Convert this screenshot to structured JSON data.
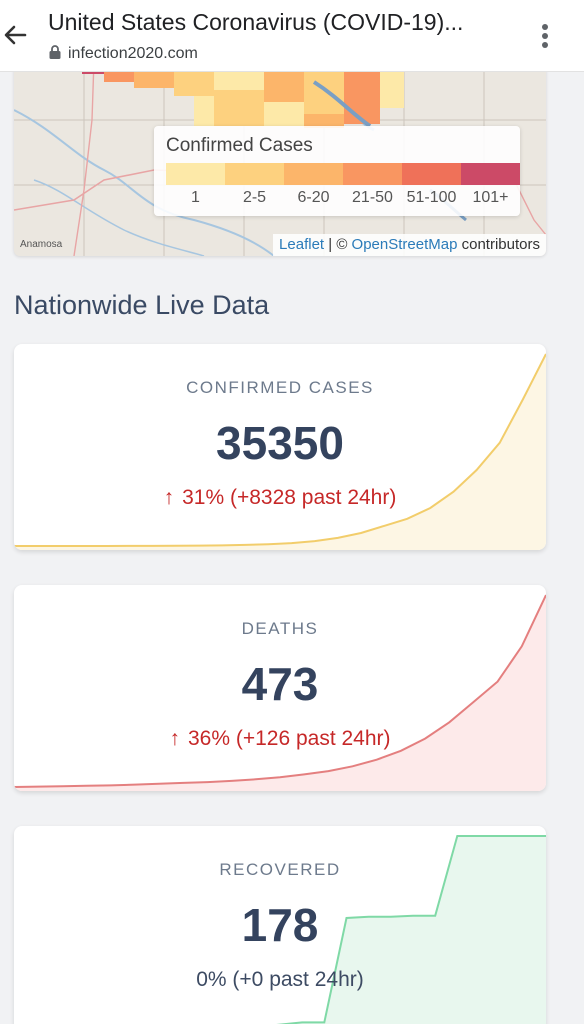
{
  "browser": {
    "title": "United States Coronavirus (COVID-19)...",
    "url": "infection2020.com"
  },
  "map": {
    "legend": {
      "title": "Confirmed Cases",
      "bins": [
        {
          "label": "1",
          "color": "#fde9a8"
        },
        {
          "label": "2-5",
          "color": "#fdd17f"
        },
        {
          "label": "6-20",
          "color": "#fcb56a"
        },
        {
          "label": "21-50",
          "color": "#f99661"
        },
        {
          "label": "51-100",
          "color": "#ef7159"
        },
        {
          "label": "101+",
          "color": "#cc4a67"
        }
      ]
    },
    "town": "Anamosa",
    "attribution": {
      "leaflet": "Leaflet",
      "separator": " | © ",
      "osm": "OpenStreetMap",
      "suffix": " contributors"
    }
  },
  "section": {
    "title": "Nationwide Live Data"
  },
  "stats": [
    {
      "label": "CONFIRMED CASES",
      "value": "35350",
      "arrow": "↑",
      "change": "31% (+8328 past 24hr)",
      "line_color": "#f2cd6b",
      "fill_color": "#fdf6e4",
      "trend": [
        1,
        2,
        3,
        5,
        8,
        14,
        24,
        40,
        70,
        120,
        200,
        330,
        540,
        900,
        1500,
        2400,
        3700,
        5000,
        7000,
        10000,
        14000,
        19000,
        27000,
        35350
      ]
    },
    {
      "label": "DEATHS",
      "value": "473",
      "arrow": "↑",
      "change": "36% (+126 past 24hr)",
      "line_color": "#e47f7f",
      "fill_color": "#fdeaea",
      "trend": [
        1,
        2,
        3,
        4,
        5,
        7,
        9,
        11,
        13,
        16,
        20,
        25,
        32,
        40,
        52,
        68,
        90,
        120,
        160,
        210,
        260,
        347,
        473
      ]
    },
    {
      "label": "RECOVERED",
      "value": "178",
      "arrow": "",
      "change": "0% (+0 past 24hr)",
      "line_color": "#7fd9a6",
      "fill_color": "#e8f7ee",
      "trend": [
        7,
        7,
        7,
        7,
        7,
        7,
        7,
        7,
        7,
        7,
        8,
        8,
        10,
        12,
        12,
        105,
        106,
        106,
        107,
        107,
        178,
        178,
        178,
        178,
        178
      ]
    }
  ]
}
